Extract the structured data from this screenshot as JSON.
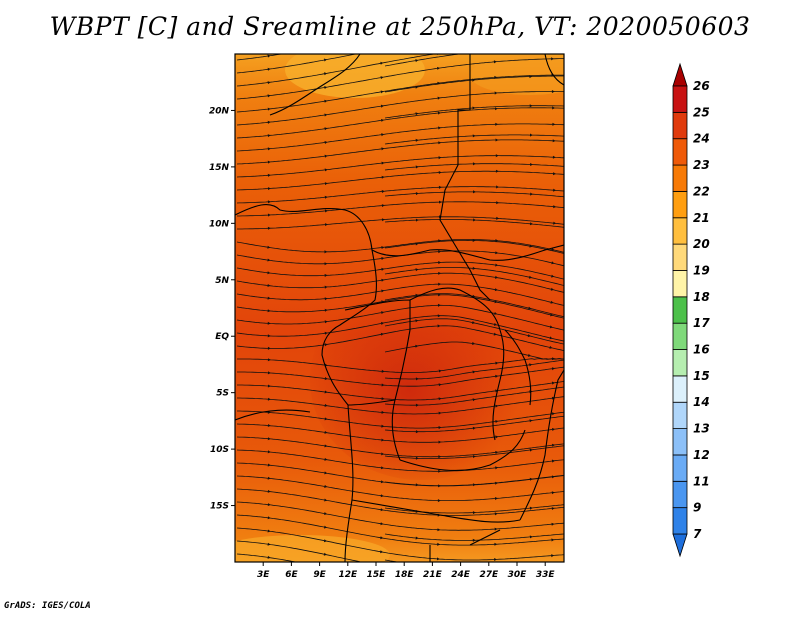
{
  "title": "WBPT [C] and Sreamline at 250hPa, VT: 2020050603",
  "credit": "GrADS: IGES/COLA",
  "map": {
    "lat_labels": [
      "20N",
      "15N",
      "10N",
      "5N",
      "EQ",
      "5S",
      "10S",
      "15S"
    ],
    "lat_values": [
      20,
      15,
      10,
      5,
      0,
      -5,
      -10,
      -15
    ],
    "lon_labels": [
      "3E",
      "6E",
      "9E",
      "12E",
      "15E",
      "18E",
      "21E",
      "24E",
      "27E",
      "30E",
      "33E"
    ],
    "lon_values": [
      3,
      6,
      9,
      12,
      15,
      18,
      21,
      24,
      27,
      30,
      33
    ],
    "lon_range": [
      0,
      35
    ],
    "lat_range": [
      -20,
      25
    ]
  },
  "colorbar": {
    "labels": [
      "7",
      "9",
      "11",
      "12",
      "13",
      "14",
      "15",
      "16",
      "17",
      "18",
      "19",
      "20",
      "21",
      "22",
      "23",
      "24",
      "25",
      "26"
    ],
    "colors": [
      "#1e6fdc",
      "#2f82e8",
      "#4a96f0",
      "#6aabf5",
      "#8cc0f8",
      "#b0d6fa",
      "#dcf0fb",
      "#b6eeb0",
      "#7fd97a",
      "#4cc04a",
      "#fff4a8",
      "#ffd97a",
      "#ffbf3f",
      "#ff9e10",
      "#f77a06",
      "#ef5a08",
      "#e03a0c",
      "#c81212",
      "#a80000"
    ]
  }
}
